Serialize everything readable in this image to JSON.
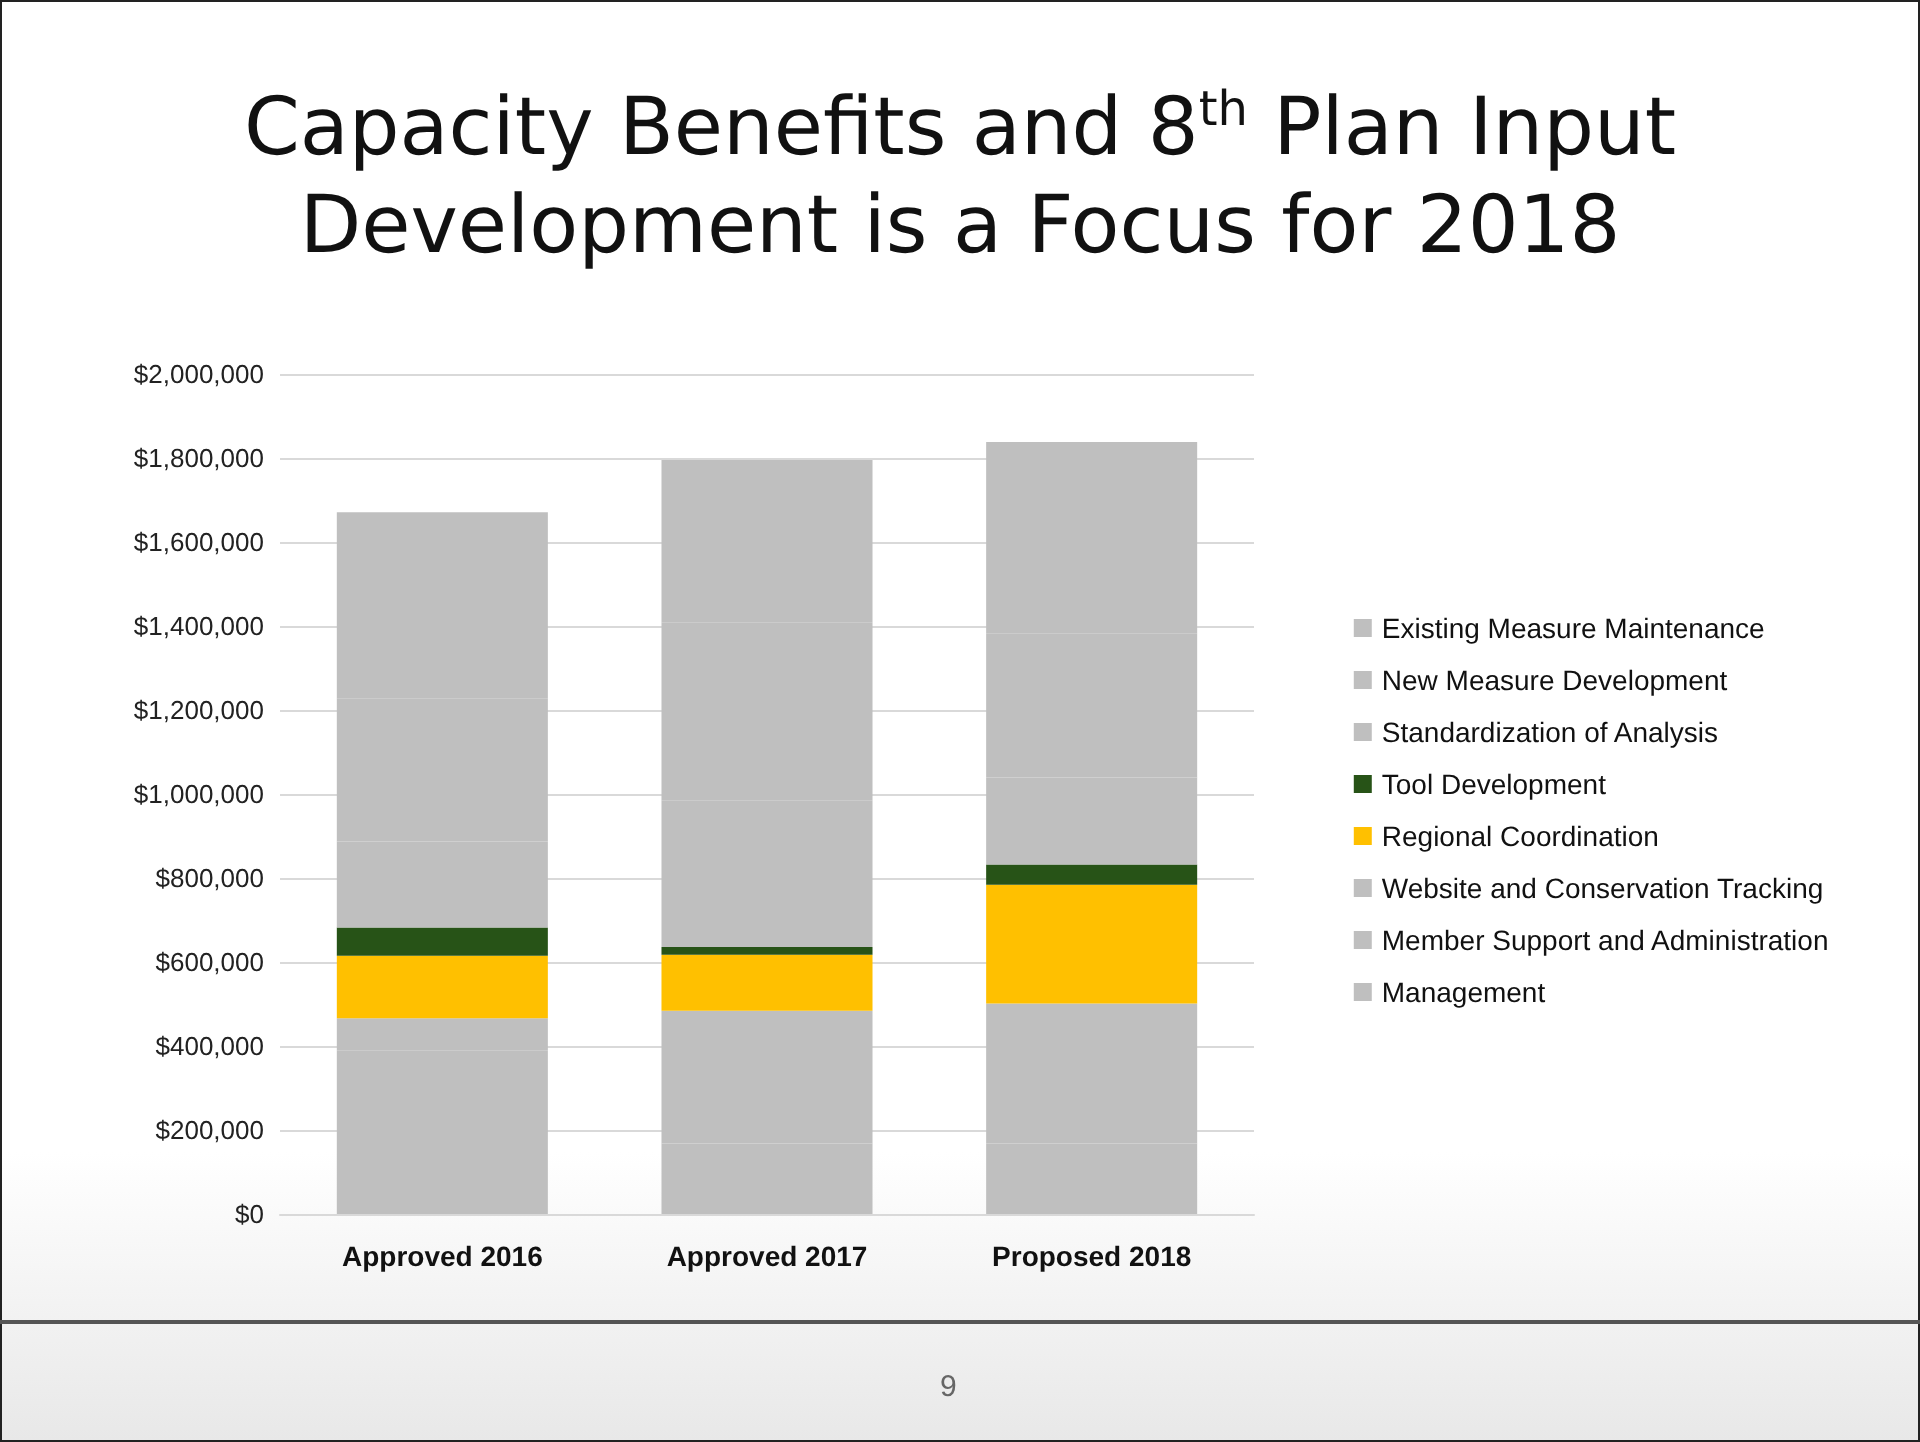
{
  "chart_data": {
    "type": "bar",
    "title": "Capacity Benefits and 8$^{th}$ Plan Input Development is a Focus for 2018",
    "categories": [
      "Approved 2016",
      "Approved 2017",
      "Proposed 2018"
    ],
    "stacked": true,
    "series": [
      {
        "name": "Management",
        "color": "#bfbfbf",
        "values": [
          390000,
          168000,
          168000
        ]
      },
      {
        "name": "Member Support and Administration",
        "color": "#bfbfbf",
        "values": [
          76000,
          316000,
          333000
        ]
      },
      {
        "name": "Website and Conservation Tracking",
        "color": "#bfbfbf",
        "values": [
          0,
          0,
          0
        ]
      },
      {
        "name": "Regional Coordination",
        "color": "#ffc000",
        "values": [
          149000,
          133000,
          283000
        ]
      },
      {
        "name": "Tool Development",
        "color": "#275317",
        "values": [
          67000,
          19000,
          48000
        ]
      },
      {
        "name": "Standardization of Analysis",
        "color": "#bfbfbf",
        "values": [
          205000,
          349000,
          207000
        ]
      },
      {
        "name": "New Measure Development",
        "color": "#bfbfbf",
        "values": [
          340000,
          424000,
          344000
        ]
      },
      {
        "name": "Existing Measure Maintenance",
        "color": "#bfbfbf",
        "values": [
          444000,
          386000,
          455000
        ]
      }
    ],
    "ylim": [
      0,
      2000000
    ],
    "yticks": [
      {
        "value": 0,
        "label": "$0"
      },
      {
        "value": 200000,
        "label": "$200,000"
      },
      {
        "value": 400000,
        "label": "$400,000"
      },
      {
        "value": 600000,
        "label": "$600,000"
      },
      {
        "value": 800000,
        "label": "$800,000"
      },
      {
        "value": 1000000,
        "label": "$1,000,000"
      },
      {
        "value": 1200000,
        "label": "$1,200,000"
      },
      {
        "value": 1400000,
        "label": "$1,400,000"
      },
      {
        "value": 1600000,
        "label": "$1,600,000"
      },
      {
        "value": 1800000,
        "label": "$1,800,000"
      },
      {
        "value": 2000000,
        "label": "$2,000,000"
      }
    ],
    "grid": "y",
    "legend": "right",
    "annotations": [
      "9"
    ]
  }
}
